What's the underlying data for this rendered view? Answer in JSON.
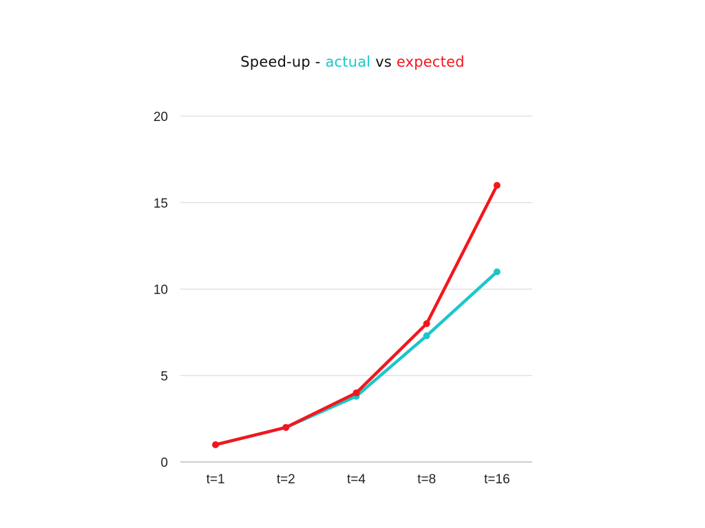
{
  "chart_data": {
    "type": "line",
    "title_parts": [
      {
        "text": "Speed-up - ",
        "color": "#111111"
      },
      {
        "text": "actual",
        "color": "#1cc6c8"
      },
      {
        "text": " vs ",
        "color": "#111111"
      },
      {
        "text": "expected",
        "color": "#f4161e"
      }
    ],
    "categories": [
      "t=1",
      "t=2",
      "t=4",
      "t=8",
      "t=16"
    ],
    "series": [
      {
        "values": [
          1,
          2,
          3.8,
          7.3,
          11
        ],
        "color": "#1cc6c8"
      },
      {
        "values": [
          1,
          2,
          4,
          8,
          16
        ],
        "color": "#f4161e"
      }
    ],
    "ylim": [
      0,
      20
    ],
    "yticks": [
      0,
      5,
      10,
      15,
      20
    ],
    "grid": true,
    "gridline_color": "#d6d6d6",
    "axis_color": "#9a9a9a"
  }
}
